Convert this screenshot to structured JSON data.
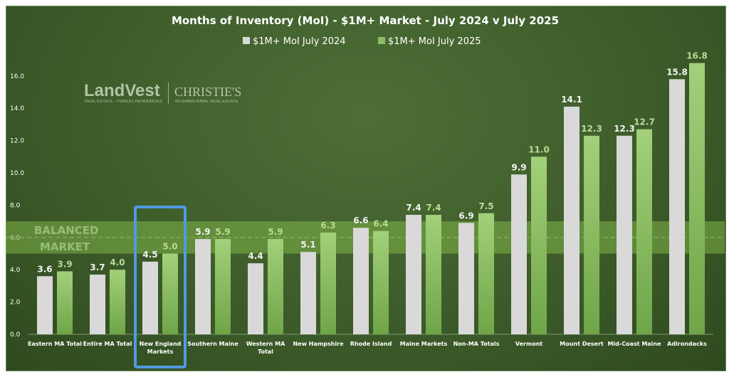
{
  "chart_data": {
    "type": "bar",
    "title": "Months of Inventory (MoI) - $1M+ Market - July 2024 v July 2025",
    "xlabel": "",
    "ylabel": "",
    "ylim": [
      0,
      17.5
    ],
    "yticks": [
      "0.0",
      "2.0",
      "4.0",
      "6.0",
      "8.0",
      "10.0",
      "12.0",
      "14.0",
      "16.0"
    ],
    "ytick_values": [
      0,
      2,
      4,
      6,
      8,
      10,
      12,
      14,
      16
    ],
    "grid": false,
    "legend_position": "top-center",
    "categories": [
      "Eastern MA Total",
      "Entire MA Total",
      "New England Markets",
      "Southern Maine",
      "Western MA Total",
      "New Hampshire",
      "Rhode Island",
      "Maine Markets",
      "Non-MA Totals",
      "Vermont",
      "Mount Desert",
      "Mid-Coast Maine",
      "Adirondacks"
    ],
    "series": [
      {
        "name": "$1M+ MoI July 2024",
        "color": "#d9d9d9",
        "values": [
          3.6,
          3.7,
          4.5,
          5.9,
          4.4,
          5.1,
          6.6,
          7.4,
          6.9,
          9.9,
          14.1,
          12.3,
          15.8
        ],
        "labels": [
          "3.6",
          "3.7",
          "4.5",
          "5.9",
          "4.4",
          "5.1",
          "6.6",
          "7.4",
          "6.9",
          "9.9",
          "14.1",
          "12.3",
          "15.8"
        ]
      },
      {
        "name": "$1M+ MoI July 2025",
        "color": "#8cbf62",
        "values": [
          3.9,
          4.0,
          5.0,
          5.9,
          5.9,
          6.3,
          6.4,
          7.4,
          7.5,
          11.0,
          12.3,
          12.7,
          16.8
        ],
        "labels": [
          "3.9",
          "4.0",
          "5.0",
          "5.9",
          "5.9",
          "6.3",
          "6.4",
          "7.4",
          "7.5",
          "11.0",
          "12.3",
          "12.7",
          "16.8"
        ]
      }
    ],
    "annotations": {
      "balanced_band": {
        "from": 5.0,
        "to": 7.0,
        "label_line1": "BALANCED",
        "label_line2": "MARKET"
      },
      "highlighted_category": "New England Markets"
    },
    "colors": {
      "background": "#3d5c2a",
      "band": "#7fb548",
      "highlight": "#4f9be0"
    }
  },
  "logo": {
    "brand1": "LandVest",
    "brand1_sub": "REAL ESTATE · FOREST RESOURCES",
    "brand2": "CHRISTIE'S",
    "brand2_sub": "INTERNATIONAL REAL ESTATE"
  }
}
